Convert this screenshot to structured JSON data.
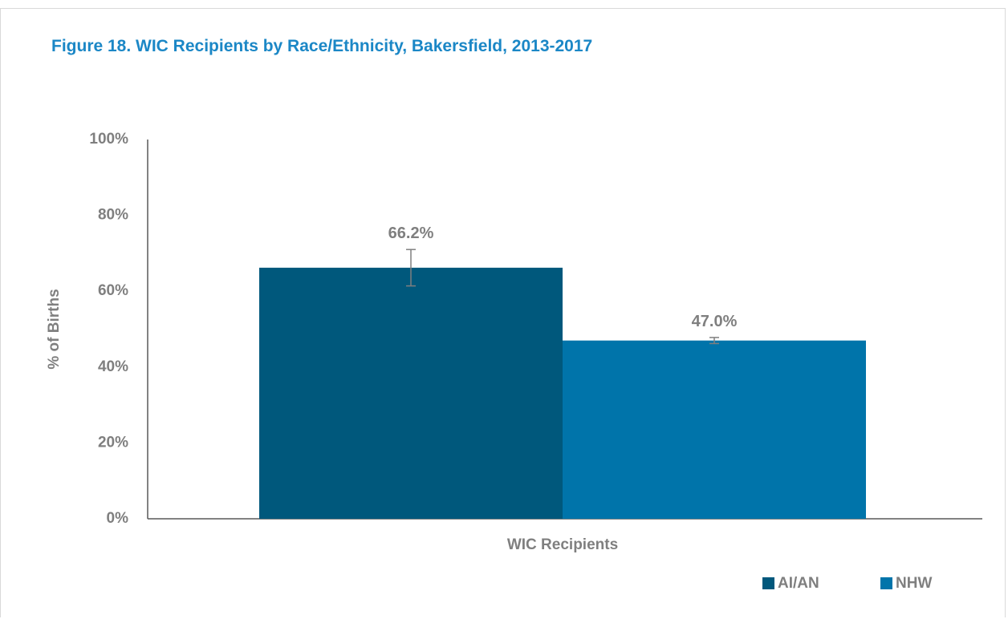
{
  "title": "Figure 18. WIC Recipients by Race/Ethnicity, Bakersfield, 2013-2017",
  "colors": {
    "title": "#1b87c6",
    "axis_text": "#7f7f7f",
    "axis_line": "#595959",
    "errorbar": "#7f7f7f"
  },
  "chart_data": {
    "type": "bar",
    "categories": [
      "WIC Recipients"
    ],
    "series": [
      {
        "name": "AI/AN",
        "values": [
          66.2
        ],
        "label": "66.2%",
        "error": [
          61.4,
          71.0
        ],
        "color": "#00587c"
      },
      {
        "name": "NHW",
        "values": [
          47.0
        ],
        "label": "47.0%",
        "error": [
          46.2,
          47.8
        ],
        "color": "#0074aa"
      }
    ],
    "ylabel": "% of Births",
    "ylim": [
      0,
      100
    ],
    "yticks": [
      0,
      20,
      40,
      60,
      80,
      100
    ],
    "ytick_labels": [
      "0%",
      "20%",
      "40%",
      "60%",
      "80%",
      "100%"
    ],
    "grid": false,
    "legend": "bottom-right"
  }
}
